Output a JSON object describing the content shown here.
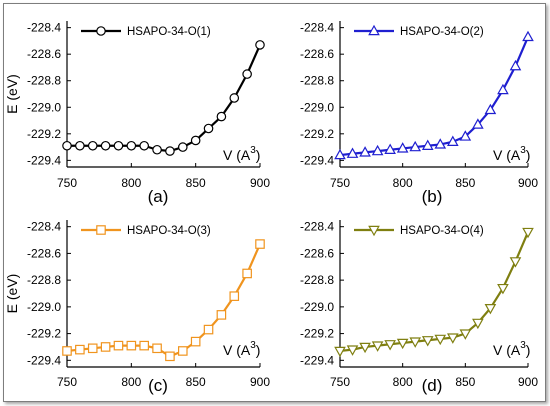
{
  "chart_data": [
    {
      "type": "line",
      "panel_label": "(a)",
      "ylabel": "E (eV)",
      "xlabel": "V (A",
      "xlabel_sup": "3",
      "xlabel_close": ")",
      "xlim": [
        750,
        900
      ],
      "ylim": [
        -229.45,
        -228.35
      ],
      "xticks": [
        750,
        800,
        850,
        900
      ],
      "yticks": [
        -228.4,
        -228.6,
        -228.8,
        -229.0,
        -229.2,
        -229.4
      ],
      "ytick_labels": [
        "-228.4",
        "-228.6",
        "-228.8",
        "-229.0",
        "-229.2",
        "-229.4"
      ],
      "legend_position": "top-left",
      "series": [
        {
          "name": "HSAPO-34-O(1)",
          "color": "#000000",
          "marker": "circle",
          "x": [
            750,
            760,
            770,
            780,
            790,
            800,
            810,
            820,
            830,
            840,
            850,
            860,
            870,
            880,
            890,
            900
          ],
          "y": [
            -229.29,
            -229.29,
            -229.29,
            -229.29,
            -229.29,
            -229.29,
            -229.29,
            -229.32,
            -229.33,
            -229.3,
            -229.25,
            -229.16,
            -229.07,
            -228.93,
            -228.75,
            -228.53
          ]
        }
      ]
    },
    {
      "type": "line",
      "panel_label": "(b)",
      "ylabel": "",
      "xlabel": "V (A",
      "xlabel_sup": "3",
      "xlabel_close": ")",
      "xlim": [
        750,
        900
      ],
      "ylim": [
        -229.45,
        -228.35
      ],
      "xticks": [
        750,
        800,
        850,
        900
      ],
      "yticks": [
        -228.4,
        -228.6,
        -228.8,
        -229.0,
        -229.2,
        -229.4
      ],
      "ytick_labels": [
        "-228.4",
        "-228.6",
        "-228.8",
        "-229.0",
        "-229.2",
        "-229.4"
      ],
      "legend_position": "top-left",
      "series": [
        {
          "name": "HSAPO-34-O(2)",
          "color": "#1f1fd0",
          "marker": "triangle-up",
          "x": [
            750,
            760,
            770,
            780,
            790,
            800,
            810,
            820,
            830,
            840,
            850,
            860,
            870,
            880,
            890,
            900
          ],
          "y": [
            -229.36,
            -229.35,
            -229.34,
            -229.33,
            -229.32,
            -229.31,
            -229.3,
            -229.29,
            -229.28,
            -229.26,
            -229.22,
            -229.13,
            -229.02,
            -228.87,
            -228.69,
            -228.47
          ]
        }
      ]
    },
    {
      "type": "line",
      "panel_label": "(c)",
      "ylabel": "E (eV)",
      "xlabel": "V (A",
      "xlabel_sup": "3",
      "xlabel_close": ")",
      "xlim": [
        750,
        900
      ],
      "ylim": [
        -229.45,
        -228.35
      ],
      "xticks": [
        750,
        800,
        850,
        900
      ],
      "yticks": [
        -228.4,
        -228.6,
        -228.8,
        -229.0,
        -229.2,
        -229.4
      ],
      "ytick_labels": [
        "-228.4",
        "-228.6",
        "-228.8",
        "-229.0",
        "-229.2",
        "-229.4"
      ],
      "legend_position": "top-left",
      "series": [
        {
          "name": "HSAPO-34-O(3)",
          "color": "#f0941e",
          "marker": "square",
          "x": [
            750,
            760,
            770,
            780,
            790,
            800,
            810,
            820,
            830,
            840,
            850,
            860,
            870,
            880,
            890,
            900
          ],
          "y": [
            -229.33,
            -229.32,
            -229.31,
            -229.3,
            -229.29,
            -229.29,
            -229.29,
            -229.31,
            -229.37,
            -229.33,
            -229.26,
            -229.17,
            -229.06,
            -228.92,
            -228.75,
            -228.53
          ]
        }
      ]
    },
    {
      "type": "line",
      "panel_label": "(d)",
      "ylabel": "",
      "xlabel": "V (A",
      "xlabel_sup": "3",
      "xlabel_close": ")",
      "xlim": [
        750,
        900
      ],
      "ylim": [
        -229.45,
        -228.35
      ],
      "xticks": [
        750,
        800,
        850,
        900
      ],
      "yticks": [
        -228.4,
        -228.6,
        -228.8,
        -229.0,
        -229.2,
        -229.4
      ],
      "ytick_labels": [
        "-228.4",
        "-228.6",
        "-228.8",
        "-229.0",
        "-229.2",
        "-229.4"
      ],
      "legend_position": "top-left",
      "series": [
        {
          "name": "HSAPO-34-O(4)",
          "color": "#7f7f10",
          "marker": "triangle-down",
          "x": [
            750,
            760,
            770,
            780,
            790,
            800,
            810,
            820,
            830,
            840,
            850,
            860,
            870,
            880,
            890,
            900
          ],
          "y": [
            -229.33,
            -229.32,
            -229.3,
            -229.29,
            -229.28,
            -229.27,
            -229.26,
            -229.25,
            -229.24,
            -229.23,
            -229.2,
            -229.12,
            -229.01,
            -228.86,
            -228.66,
            -228.44
          ]
        }
      ]
    }
  ]
}
